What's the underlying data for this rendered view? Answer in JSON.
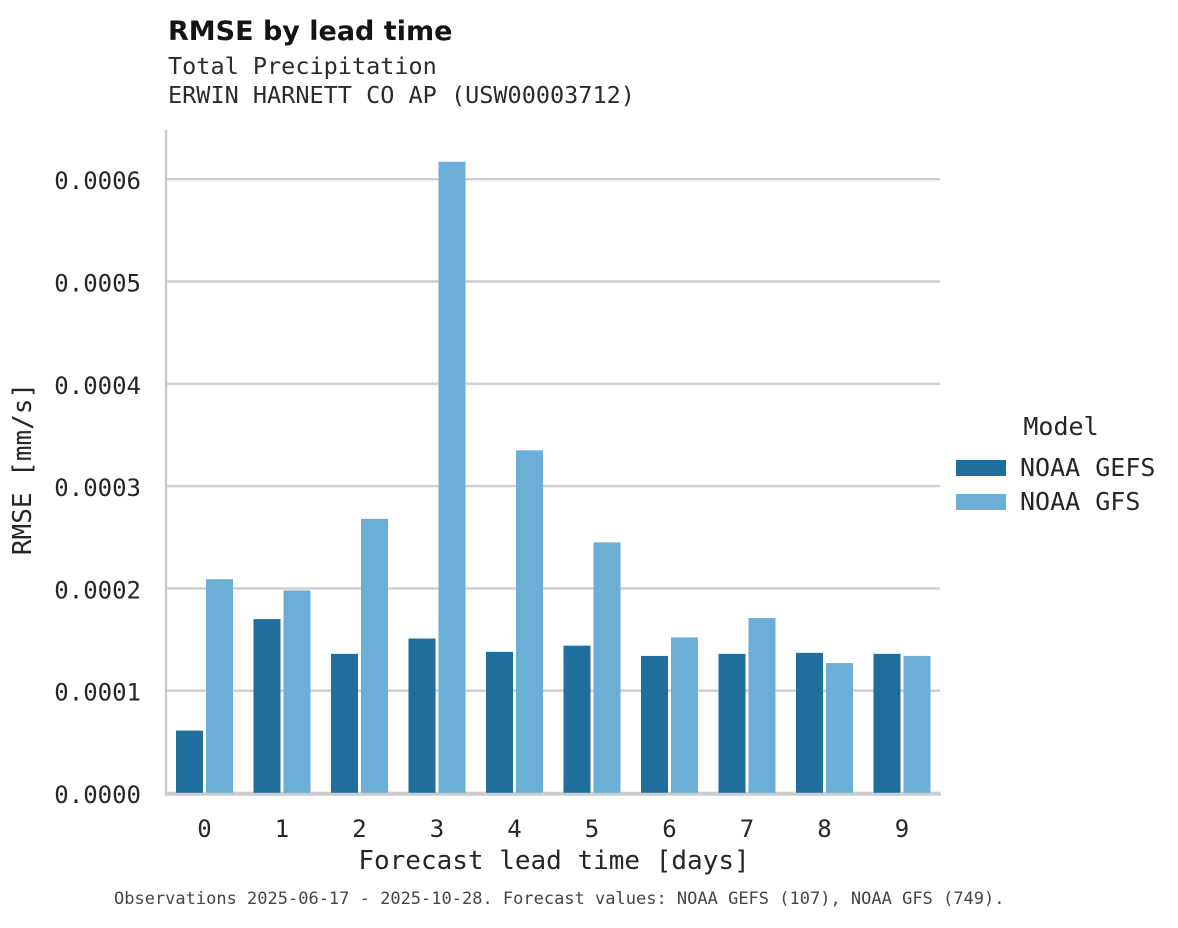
{
  "header": {
    "title": "RMSE by lead time",
    "subtitle_variable": "Total Precipitation",
    "subtitle_station": "ERWIN HARNETT CO AP (USW00003712)"
  },
  "legend": {
    "title": "Model",
    "items": [
      {
        "label": "NOAA GEFS"
      },
      {
        "label": "NOAA GFS"
      }
    ]
  },
  "footnote": {
    "text": "Observations 2025-06-17 - 2025-10-28. Forecast values: NOAA GEFS (107), NOAA GFS (749)."
  },
  "chart_data": {
    "type": "bar",
    "title": "RMSE by lead time",
    "subtitle": [
      "Total Precipitation",
      "ERWIN HARNETT CO AP (USW00003712)"
    ],
    "xlabel": "Forecast lead time [days]",
    "ylabel": "RMSE [mm/s]",
    "categories": [
      "0",
      "1",
      "2",
      "3",
      "4",
      "5",
      "6",
      "7",
      "8",
      "9"
    ],
    "series": [
      {
        "name": "NOAA GEFS",
        "color": "#1f6e9c",
        "values": [
          6.1e-05,
          0.00017,
          0.000136,
          0.000151,
          0.000138,
          0.000144,
          0.000134,
          0.000136,
          0.000137,
          0.000136
        ]
      },
      {
        "name": "NOAA GFS",
        "color": "#6baed6",
        "values": [
          0.000209,
          0.000198,
          0.000268,
          0.000617,
          0.000335,
          0.000245,
          0.000152,
          0.000171,
          0.000127,
          0.000134
        ]
      }
    ],
    "ylim": [
      0.0,
      0.00065
    ],
    "yticks": [
      0.0,
      0.0001,
      0.0002,
      0.0003,
      0.0004,
      0.0005,
      0.0006
    ],
    "ytick_labels": [
      "0.0000",
      "0.0001",
      "0.0002",
      "0.0003",
      "0.0004",
      "0.0005",
      "0.0006"
    ],
    "grid": true,
    "grid_color": "#cecece",
    "legend_position": "right"
  }
}
